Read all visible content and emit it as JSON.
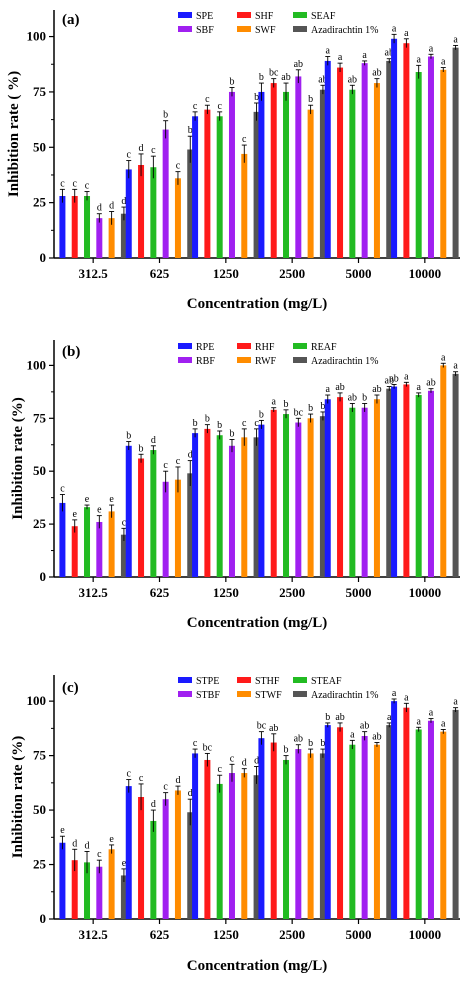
{
  "chart_data": [
    {
      "type": "bar",
      "panel_label": "(a)",
      "xlabel": "Concentration (mg/L)",
      "ylabel": "Inhibition rate ( %)",
      "categories": [
        "312.5",
        "625",
        "1250",
        "2500",
        "5000",
        "10000"
      ],
      "ylim": [
        0,
        112
      ],
      "yticks": [
        "0",
        "25",
        "50",
        "75",
        "100"
      ],
      "grid": false,
      "legend_position": "top",
      "series": [
        {
          "name": "SPE",
          "color": "#1a1aff",
          "values": [
            28,
            40,
            64,
            75,
            89,
            99
          ],
          "errors": [
            3,
            4,
            2,
            4,
            2,
            2
          ],
          "letters": [
            "c",
            "c",
            "c",
            "b",
            "a",
            "a"
          ]
        },
        {
          "name": "SHF",
          "color": "#ff1a1a",
          "values": [
            28,
            42,
            67,
            79,
            86,
            97
          ],
          "errors": [
            3,
            5,
            2,
            2,
            2,
            2
          ],
          "letters": [
            "c",
            "d",
            "c",
            "bc",
            "a",
            "a"
          ]
        },
        {
          "name": "SEAF",
          "color": "#22bb22",
          "values": [
            28,
            41,
            64,
            75,
            76,
            84
          ],
          "errors": [
            2,
            5,
            2,
            4,
            2,
            3
          ],
          "letters": [
            "c",
            "c",
            "c",
            "ab",
            "ab",
            "a"
          ]
        },
        {
          "name": "SBF",
          "color": "#a020f0",
          "values": [
            18,
            58,
            75,
            82,
            88,
            91
          ],
          "errors": [
            2,
            4,
            2,
            3,
            1,
            1
          ],
          "letters": [
            "d",
            "b",
            "b",
            "ab",
            "a",
            "a"
          ]
        },
        {
          "name": "SWF",
          "color": "#ff8c00",
          "values": [
            18,
            36,
            47,
            67,
            79,
            85
          ],
          "errors": [
            3,
            3,
            4,
            2,
            2,
            1
          ],
          "letters": [
            "d",
            "c",
            "c",
            "b",
            "ab",
            "a"
          ]
        },
        {
          "name": "Azadirachtin 1%",
          "color": "#555555",
          "values": [
            20,
            49,
            66,
            76,
            89,
            95
          ],
          "errors": [
            3,
            6,
            4,
            2,
            1,
            1
          ],
          "letters": [
            "d",
            "b",
            "b",
            "ab",
            "ab",
            "a"
          ]
        }
      ]
    },
    {
      "type": "bar",
      "panel_label": "(b)",
      "xlabel": "Concentration (mg/L)",
      "ylabel": "Inhibition rate (%)",
      "categories": [
        "312.5",
        "625",
        "1250",
        "2500",
        "5000",
        "10000"
      ],
      "ylim": [
        0,
        112
      ],
      "yticks": [
        "0",
        "25",
        "50",
        "75",
        "100"
      ],
      "grid": false,
      "legend_position": "top",
      "series": [
        {
          "name": "RPE",
          "color": "#1a1aff",
          "values": [
            35,
            62,
            68,
            72,
            84,
            90
          ],
          "errors": [
            4,
            2,
            2,
            2,
            2,
            1
          ],
          "letters": [
            "c",
            "b",
            "b",
            "b",
            "a",
            "ab"
          ]
        },
        {
          "name": "RHF",
          "color": "#ff1a1a",
          "values": [
            24,
            56,
            70,
            79,
            85,
            91
          ],
          "errors": [
            3,
            2,
            2,
            1,
            2,
            1
          ],
          "letters": [
            "e",
            "b",
            "b",
            "a",
            "ab",
            "a"
          ]
        },
        {
          "name": "REAF",
          "color": "#22bb22",
          "values": [
            33,
            60,
            67,
            77,
            80,
            86
          ],
          "errors": [
            1,
            2,
            2,
            2,
            2,
            1
          ],
          "letters": [
            "e",
            "d",
            "b",
            "b",
            "ab",
            "a"
          ]
        },
        {
          "name": "RBF",
          "color": "#a020f0",
          "values": [
            26,
            45,
            62,
            73,
            80,
            88
          ],
          "errors": [
            3,
            5,
            3,
            2,
            2,
            1
          ],
          "letters": [
            "e",
            "c",
            "b",
            "bc",
            "b",
            "ab"
          ]
        },
        {
          "name": "RWF",
          "color": "#ff8c00",
          "values": [
            31,
            46,
            66,
            75,
            84,
            100
          ],
          "errors": [
            3,
            6,
            4,
            2,
            2,
            1
          ],
          "letters": [
            "e",
            "c",
            "c",
            "b",
            "ab",
            "a"
          ]
        },
        {
          "name": "Azadirachtin 1%",
          "color": "#555555",
          "values": [
            20,
            49,
            66,
            76,
            89,
            96
          ],
          "errors": [
            3,
            6,
            4,
            2,
            1,
            1
          ],
          "letters": [
            "c",
            "d",
            "c",
            "b",
            "ab",
            "a"
          ]
        }
      ]
    },
    {
      "type": "bar",
      "panel_label": "(c)",
      "xlabel": "Concentration (mg/L)",
      "ylabel": "Inhibition rate (%)",
      "categories": [
        "312.5",
        "625",
        "1250",
        "2500",
        "5000",
        "10000"
      ],
      "ylim": [
        0,
        112
      ],
      "yticks": [
        "0",
        "25",
        "50",
        "75",
        "100"
      ],
      "grid": false,
      "legend_position": "top",
      "series": [
        {
          "name": "STPE",
          "color": "#1a1aff",
          "values": [
            35,
            61,
            76,
            83,
            89,
            100
          ],
          "errors": [
            3,
            3,
            2,
            3,
            1,
            1
          ],
          "letters": [
            "e",
            "c",
            "c",
            "bc",
            "b",
            "a"
          ]
        },
        {
          "name": "STHF",
          "color": "#ff1a1a",
          "values": [
            27,
            56,
            73,
            81,
            88,
            97
          ],
          "errors": [
            5,
            6,
            3,
            4,
            2,
            2
          ],
          "letters": [
            "d",
            "c",
            "bc",
            "ab",
            "ab",
            "a"
          ]
        },
        {
          "name": "STEAF",
          "color": "#22bb22",
          "values": [
            26,
            45,
            62,
            73,
            80,
            87
          ],
          "errors": [
            5,
            5,
            4,
            2,
            2,
            1
          ],
          "letters": [
            "d",
            "d",
            "c",
            "b",
            "a",
            "a"
          ]
        },
        {
          "name": "STBF",
          "color": "#a020f0",
          "values": [
            24,
            55,
            67,
            78,
            84,
            91
          ],
          "errors": [
            3,
            3,
            4,
            2,
            2,
            1
          ],
          "letters": [
            "c",
            "c",
            "c",
            "ab",
            "ab",
            "a"
          ]
        },
        {
          "name": "STWF",
          "color": "#ff8c00",
          "values": [
            32,
            59,
            67,
            76,
            80,
            86
          ],
          "errors": [
            2,
            2,
            2,
            2,
            1,
            1
          ],
          "letters": [
            "e",
            "d",
            "d",
            "b",
            "ab",
            "a"
          ]
        },
        {
          "name": "Azadirachtin 1%",
          "color": "#555555",
          "values": [
            20,
            49,
            66,
            76,
            89,
            96
          ],
          "errors": [
            3,
            6,
            4,
            2,
            1,
            1
          ],
          "letters": [
            "e",
            "d",
            "d",
            "b",
            "a",
            "a"
          ]
        }
      ]
    }
  ]
}
